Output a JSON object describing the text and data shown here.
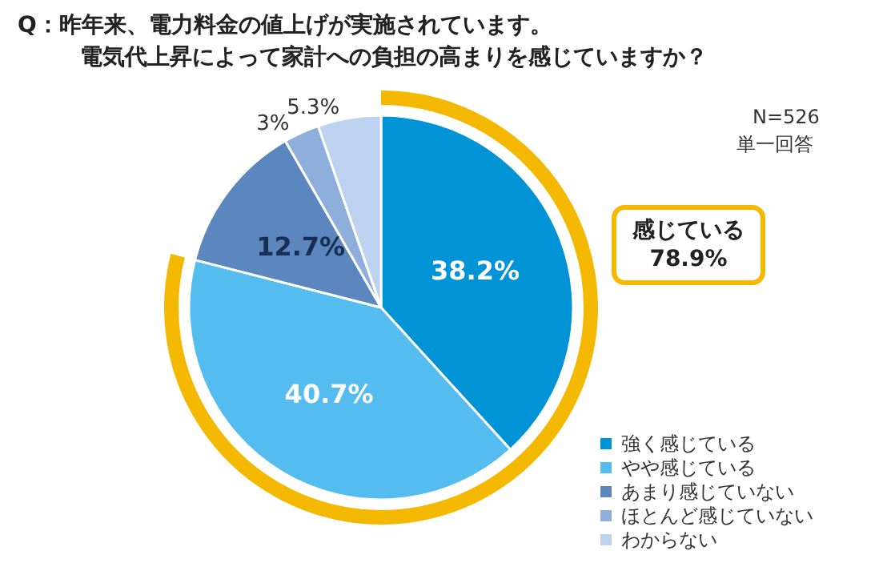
{
  "chart_data": {
    "type": "pie",
    "title": "Q：昨年来、電力料金の値上げが実施されています。",
    "subtitle": "電気代上昇によって家計への負担の高まりを感じていますか？",
    "categories": [
      "強く感じている",
      "やや感じている",
      "あまり感じていない",
      "ほとんど感じていない",
      "わからない"
    ],
    "values": [
      38.2,
      40.7,
      12.7,
      3,
      5.3
    ],
    "colors": [
      "#0093d6",
      "#55bcef",
      "#5b87be",
      "#8eaedb",
      "#bdd2ee"
    ],
    "value_labels": [
      "38.2%",
      "40.7%",
      "12.7%",
      "3%",
      "5.3%"
    ],
    "legend": "bottom right",
    "annotations": [
      "N=526",
      "単一回答",
      "感じている\n78.9%"
    ]
  }
}
